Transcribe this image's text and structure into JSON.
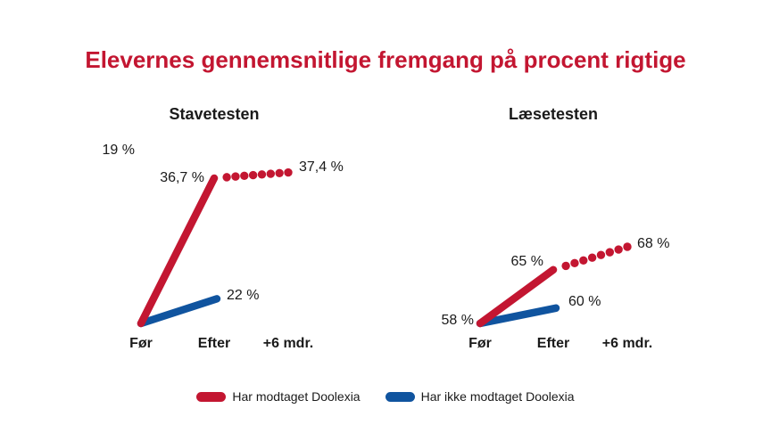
{
  "page": {
    "title": "Elevernes gennemsnitlige fremgang på procent rigtige"
  },
  "colors": {
    "title_red": "#C31631",
    "series_red": "#C31631",
    "series_blue": "#10549F",
    "text": "#1A1A1A"
  },
  "legend": [
    {
      "label": "Har modtaget Doolexia",
      "color": "#C31631"
    },
    {
      "label": "Har ikke modtaget Doolexia",
      "color": "#10549F"
    }
  ],
  "chart_data": [
    {
      "type": "line",
      "title": "Stavetesten",
      "categories": [
        "Før",
        "Efter",
        "+6 mdr."
      ],
      "series": [
        {
          "name": "Har modtaget Doolexia",
          "color": "#C31631",
          "values": [
            19,
            36.7,
            37.4
          ],
          "segment_styles": [
            "solid",
            "dotted"
          ],
          "value_labels": [
            "19 %",
            "36,7 %",
            "37,4 %"
          ]
        },
        {
          "name": "Har ikke modtaget Doolexia",
          "color": "#10549F",
          "values": [
            19,
            22
          ],
          "segment_styles": [
            "solid"
          ],
          "value_labels": [
            null,
            "22 %"
          ]
        }
      ]
    },
    {
      "type": "line",
      "title": "Læsetesten",
      "categories": [
        "Før",
        "Efter",
        "+6 mdr."
      ],
      "series": [
        {
          "name": "Har modtaget Doolexia",
          "color": "#C31631",
          "values": [
            58,
            65,
            68
          ],
          "segment_styles": [
            "solid",
            "dotted"
          ],
          "value_labels": [
            "58 %",
            "65 %",
            "68 %"
          ]
        },
        {
          "name": "Har ikke modtaget Doolexia",
          "color": "#10549F",
          "values": [
            58,
            60
          ],
          "segment_styles": [
            "solid"
          ],
          "value_labels": [
            null,
            "60 %"
          ]
        }
      ]
    }
  ]
}
